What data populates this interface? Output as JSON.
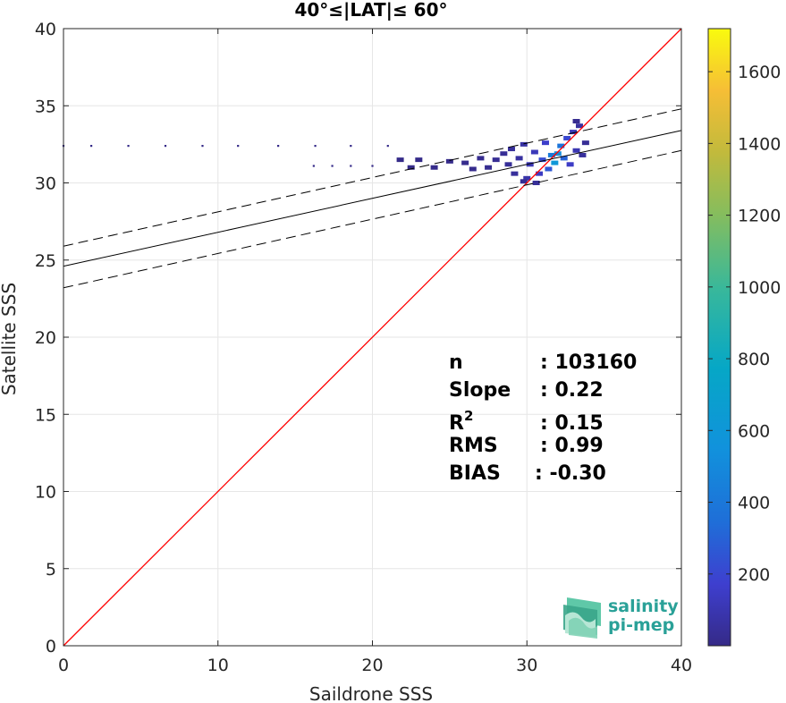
{
  "chart_data": {
    "type": "scatter",
    "title": "40°≤|LAT|≤ 60°",
    "xlabel": "Saildrone SSS",
    "ylabel": "Satellite SSS",
    "xlim": [
      0,
      40
    ],
    "ylim": [
      0,
      40
    ],
    "xticks": [
      0,
      10,
      20,
      30,
      40
    ],
    "yticks": [
      0,
      5,
      10,
      15,
      20,
      25,
      30,
      35,
      40
    ],
    "grid": true,
    "colorbar": {
      "ticks": [
        200,
        400,
        600,
        800,
        1000,
        1200,
        1400,
        1600
      ],
      "range": [
        0,
        1720
      ],
      "colormap": "parula",
      "position": "right"
    },
    "lines": [
      {
        "role": "one-to-one",
        "color": "#ff0000",
        "style": "solid",
        "x": [
          0,
          40
        ],
        "y": [
          0,
          40
        ]
      },
      {
        "role": "regression",
        "color": "#000000",
        "style": "solid",
        "x": [
          0,
          40
        ],
        "y": [
          24.6,
          33.4
        ]
      },
      {
        "role": "regression-upper",
        "color": "#000000",
        "style": "dashed",
        "x": [
          0,
          40
        ],
        "y": [
          25.9,
          34.8
        ]
      },
      {
        "role": "regression-lower",
        "color": "#000000",
        "style": "dashed",
        "x": [
          0,
          40
        ],
        "y": [
          23.2,
          32.1
        ]
      }
    ],
    "density_cells": [
      {
        "x": 0.0,
        "y": 32.4,
        "count": 3
      },
      {
        "x": 1.8,
        "y": 32.4,
        "count": 3
      },
      {
        "x": 4.2,
        "y": 32.4,
        "count": 3
      },
      {
        "x": 6.6,
        "y": 32.4,
        "count": 3
      },
      {
        "x": 9.0,
        "y": 32.4,
        "count": 3
      },
      {
        "x": 11.3,
        "y": 32.4,
        "count": 3
      },
      {
        "x": 13.9,
        "y": 32.4,
        "count": 3
      },
      {
        "x": 16.3,
        "y": 32.4,
        "count": 3
      },
      {
        "x": 18.6,
        "y": 32.4,
        "count": 3
      },
      {
        "x": 21.0,
        "y": 32.4,
        "count": 4
      },
      {
        "x": 16.2,
        "y": 31.1,
        "count": 3
      },
      {
        "x": 17.4,
        "y": 31.1,
        "count": 4
      },
      {
        "x": 18.6,
        "y": 31.1,
        "count": 4
      },
      {
        "x": 20.0,
        "y": 31.1,
        "count": 3
      },
      {
        "x": 21.8,
        "y": 31.5,
        "count": 5
      },
      {
        "x": 23.0,
        "y": 31.5,
        "count": 6
      },
      {
        "x": 22.5,
        "y": 31.0,
        "count": 5
      },
      {
        "x": 24.0,
        "y": 31.0,
        "count": 8
      },
      {
        "x": 25.0,
        "y": 31.4,
        "count": 10
      },
      {
        "x": 26.0,
        "y": 31.3,
        "count": 14
      },
      {
        "x": 26.5,
        "y": 30.9,
        "count": 15
      },
      {
        "x": 27.0,
        "y": 31.6,
        "count": 18
      },
      {
        "x": 27.5,
        "y": 31.0,
        "count": 22
      },
      {
        "x": 28.0,
        "y": 31.5,
        "count": 30
      },
      {
        "x": 28.5,
        "y": 31.9,
        "count": 35
      },
      {
        "x": 28.8,
        "y": 31.2,
        "count": 40
      },
      {
        "x": 29.0,
        "y": 32.2,
        "count": 45
      },
      {
        "x": 29.2,
        "y": 30.6,
        "count": 50
      },
      {
        "x": 29.5,
        "y": 31.6,
        "count": 60
      },
      {
        "x": 29.8,
        "y": 32.5,
        "count": 70
      },
      {
        "x": 30.0,
        "y": 30.3,
        "count": 80
      },
      {
        "x": 30.2,
        "y": 31.2,
        "count": 110
      },
      {
        "x": 30.5,
        "y": 32.0,
        "count": 120
      },
      {
        "x": 30.8,
        "y": 30.6,
        "count": 140
      },
      {
        "x": 31.0,
        "y": 31.5,
        "count": 220
      },
      {
        "x": 31.2,
        "y": 32.6,
        "count": 160
      },
      {
        "x": 31.4,
        "y": 30.9,
        "count": 260
      },
      {
        "x": 31.6,
        "y": 31.8,
        "count": 420
      },
      {
        "x": 31.8,
        "y": 31.3,
        "count": 600
      },
      {
        "x": 32.0,
        "y": 31.9,
        "count": 520
      },
      {
        "x": 32.2,
        "y": 32.4,
        "count": 380
      },
      {
        "x": 32.4,
        "y": 31.6,
        "count": 300
      },
      {
        "x": 32.6,
        "y": 32.9,
        "count": 200
      },
      {
        "x": 32.8,
        "y": 31.2,
        "count": 150
      },
      {
        "x": 33.0,
        "y": 33.3,
        "count": 120
      },
      {
        "x": 33.2,
        "y": 32.1,
        "count": 100
      },
      {
        "x": 33.4,
        "y": 33.7,
        "count": 60
      },
      {
        "x": 33.6,
        "y": 31.8,
        "count": 50
      },
      {
        "x": 33.8,
        "y": 32.6,
        "count": 35
      },
      {
        "x": 33.2,
        "y": 34.0,
        "count": 20
      },
      {
        "x": 30.6,
        "y": 30.0,
        "count": 40
      },
      {
        "x": 29.8,
        "y": 30.1,
        "count": 30
      }
    ],
    "stats": [
      {
        "label": "n",
        "value": ": 103160"
      },
      {
        "label": "Slope",
        "value": ": 0.22"
      },
      {
        "label": "R",
        "sup": "2",
        "value": ": 0.15"
      },
      {
        "label": "RMS",
        "value": ": 0.99"
      },
      {
        "label": "BIAS",
        "value": ": -0.30"
      }
    ]
  },
  "logo": {
    "line1": "salinity",
    "line2": "pi-mep",
    "color": "#2aa198"
  }
}
